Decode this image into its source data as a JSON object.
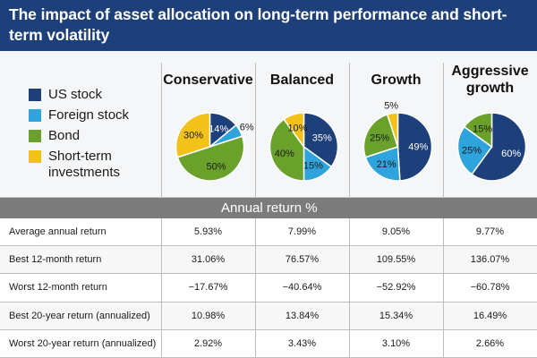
{
  "title": "The impact of asset allocation on long-term performance and short-term volatility",
  "legend": [
    {
      "label": "US stock",
      "color": "#1d3f7a"
    },
    {
      "label": "Foreign stock",
      "color": "#2ea3dc"
    },
    {
      "label": "Bond",
      "color": "#6aa12a"
    },
    {
      "label": "Short-term investments",
      "color": "#f3c21a"
    }
  ],
  "band_label": "Annual return %",
  "chart_data": {
    "type": "pie",
    "series": [
      {
        "name": "Conservative",
        "slices": [
          {
            "category": "US stock",
            "value": 14
          },
          {
            "category": "Foreign stock",
            "value": 6
          },
          {
            "category": "Bond",
            "value": 50
          },
          {
            "category": "Short-term investments",
            "value": 30
          }
        ]
      },
      {
        "name": "Balanced",
        "slices": [
          {
            "category": "US stock",
            "value": 35
          },
          {
            "category": "Foreign stock",
            "value": 15
          },
          {
            "category": "Bond",
            "value": 40
          },
          {
            "category": "Short-term investments",
            "value": 10
          }
        ]
      },
      {
        "name": "Growth",
        "slices": [
          {
            "category": "US stock",
            "value": 49
          },
          {
            "category": "Foreign stock",
            "value": 21
          },
          {
            "category": "Bond",
            "value": 25
          },
          {
            "category": "Short-term investments",
            "value": 5
          }
        ]
      },
      {
        "name": "Aggressive growth",
        "slices": [
          {
            "category": "US stock",
            "value": 60
          },
          {
            "category": "Foreign stock",
            "value": 25
          },
          {
            "category": "Bond",
            "value": 15
          },
          {
            "category": "Short-term investments",
            "value": 0
          }
        ]
      }
    ],
    "table": {
      "rows": [
        {
          "label": "Average annual return",
          "values": [
            "5.93%",
            "7.99%",
            "9.05%",
            "9.77%"
          ]
        },
        {
          "label": "Best 12-month return",
          "values": [
            "31.06%",
            "76.57%",
            "109.55%",
            "136.07%"
          ]
        },
        {
          "label": "Worst 12-month return",
          "values": [
            "−17.67%",
            "−40.64%",
            "−52.92%",
            "−60.78%"
          ]
        },
        {
          "label": "Best 20-year return (annualized)",
          "values": [
            "10.98%",
            "13.84%",
            "15.34%",
            "16.49%"
          ]
        },
        {
          "label": "Worst 20-year return (annualized)",
          "values": [
            "2.92%",
            "3.43%",
            "3.10%",
            "2.66%"
          ]
        }
      ]
    }
  }
}
